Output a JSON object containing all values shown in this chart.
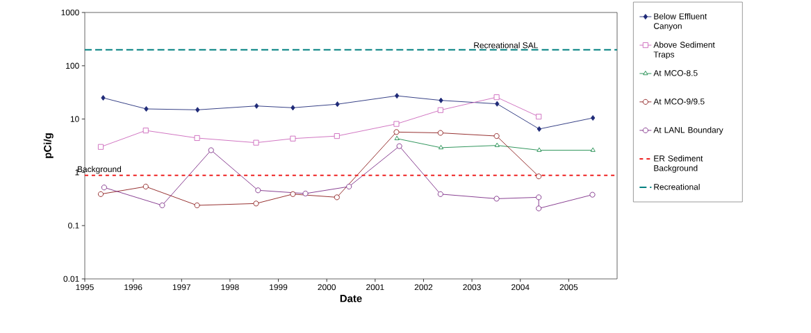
{
  "chart_data": {
    "type": "line",
    "xlabel": "Date",
    "ylabel": "pCi/g",
    "log": "y",
    "xlim": [
      1995,
      2006
    ],
    "xticks": [
      1995,
      1996,
      1997,
      1998,
      1999,
      2000,
      2001,
      2002,
      2003,
      2004,
      2005
    ],
    "ylim": [
      0.01,
      1000
    ],
    "yticks": [
      0.01,
      0.1,
      1,
      10,
      100,
      1000
    ],
    "grid": false,
    "legend": "right",
    "series": [
      {
        "name": "Below Effluent Canyon",
        "color": "#1f2a78",
        "marker": "diamond",
        "x": [
          1995.38,
          1996.27,
          1997.33,
          1998.55,
          1999.3,
          2000.22,
          2001.45,
          2002.36,
          2003.52,
          2004.39,
          2005.5
        ],
        "values": [
          25,
          15.5,
          14.9,
          17.6,
          16.3,
          19,
          27.3,
          22.4,
          19.3,
          6.5,
          10.5
        ]
      },
      {
        "name": "Above Sediment Traps",
        "color": "#cc66bb",
        "marker": "square",
        "x": [
          1995.33,
          1996.26,
          1997.32,
          1998.54,
          1999.3,
          2000.21,
          2001.44,
          2002.35,
          2003.51,
          2004.38
        ],
        "values": [
          3.0,
          6.1,
          4.4,
          3.6,
          4.3,
          4.8,
          8.1,
          14.7,
          25.7,
          11.1
        ]
      },
      {
        "name": "At MCO-8.5",
        "color": "#1a8a4a",
        "marker": "triangle",
        "x": [
          2001.45,
          2002.36,
          2003.52,
          2004.39,
          2005.5
        ],
        "values": [
          4.3,
          2.9,
          3.2,
          2.6,
          2.6
        ]
      },
      {
        "name": "At MCO-9/9.5",
        "color": "#8b1a1a",
        "marker": "circle",
        "x": [
          1995.33,
          1996.26,
          1997.32,
          1998.54,
          1999.3,
          2000.21,
          2001.44,
          2002.35,
          2003.51,
          2004.38
        ],
        "values": [
          0.39,
          0.54,
          0.24,
          0.26,
          0.39,
          0.34,
          5.7,
          5.5,
          4.8,
          0.84
        ]
      },
      {
        "name": "At LANL Boundary",
        "color": "#7b2a85",
        "marker": "circle",
        "x": [
          1995.4,
          1996.6,
          1997.61,
          1998.58,
          1999.56,
          2000.46,
          2001.5,
          2002.35,
          2003.51,
          2004.38,
          2004.38,
          2005.49
        ],
        "values": [
          0.52,
          0.24,
          2.6,
          0.46,
          0.4,
          0.54,
          3.1,
          0.39,
          0.32,
          0.34,
          0.21,
          0.38
        ]
      }
    ],
    "ref_lines": [
      {
        "axis": "y",
        "value": 0.88,
        "label": "ER Sediment Background",
        "color": "#ee2222",
        "line_style": "dotted"
      },
      {
        "axis": "y",
        "value": 200,
        "label": "Recreational",
        "color": "#008080",
        "line_style": "dashed"
      }
    ],
    "annotations": [
      {
        "text": "Background",
        "x": 1995.3,
        "y": 0.88
      },
      {
        "text": "Recreational SAL",
        "x": 2003.7,
        "y": 200
      }
    ]
  }
}
